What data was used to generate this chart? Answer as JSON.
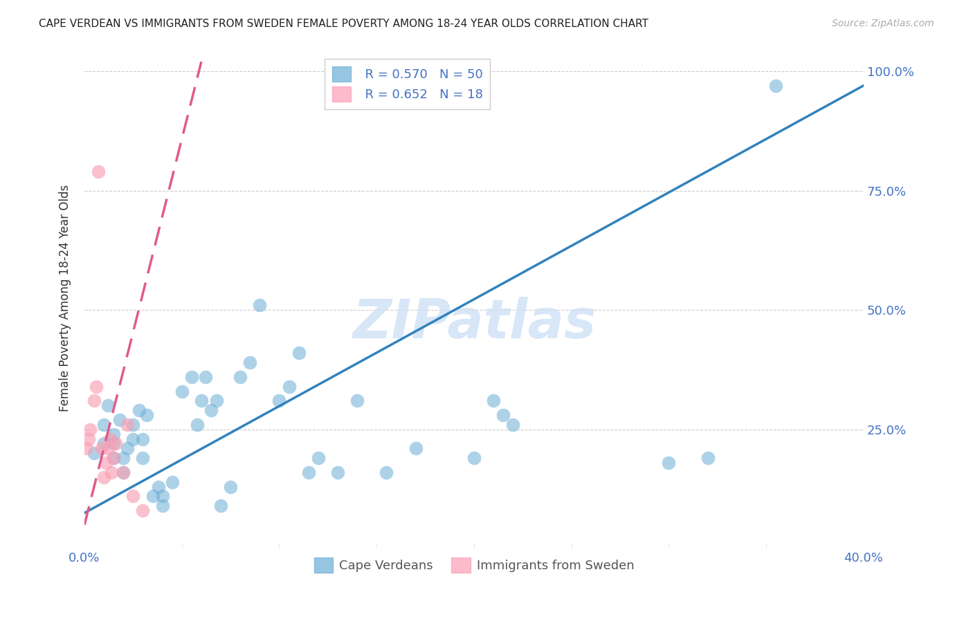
{
  "title": "CAPE VERDEAN VS IMMIGRANTS FROM SWEDEN FEMALE POVERTY AMONG 18-24 YEAR OLDS CORRELATION CHART",
  "source": "Source: ZipAtlas.com",
  "ylabel": "Female Poverty Among 18-24 Year Olds",
  "xlim": [
    0.0,
    0.4
  ],
  "ylim": [
    0.0,
    1.05
  ],
  "xticks": [
    0.0,
    0.05,
    0.1,
    0.15,
    0.2,
    0.25,
    0.3,
    0.35,
    0.4
  ],
  "xtick_labels": [
    "0.0%",
    "",
    "",
    "",
    "",
    "",
    "",
    "",
    "40.0%"
  ],
  "ytick_labels": [
    "",
    "25.0%",
    "50.0%",
    "75.0%",
    "100.0%"
  ],
  "yticks": [
    0.0,
    0.25,
    0.5,
    0.75,
    1.0
  ],
  "blue_color": "#6baed6",
  "pink_color": "#fa9fb5",
  "blue_line_color": "#3182bd",
  "pink_line_color": "#e05a8a",
  "blue_R": 0.57,
  "blue_N": 50,
  "pink_R": 0.652,
  "pink_N": 18,
  "watermark": "ZIPatlas",
  "legend_label_blue": "Cape Verdeans",
  "legend_label_pink": "Immigrants from Sweden",
  "blue_scatter_x": [
    0.005,
    0.01,
    0.01,
    0.012,
    0.015,
    0.015,
    0.015,
    0.018,
    0.02,
    0.02,
    0.022,
    0.025,
    0.025,
    0.028,
    0.03,
    0.03,
    0.032,
    0.035,
    0.038,
    0.04,
    0.04,
    0.045,
    0.05,
    0.055,
    0.058,
    0.06,
    0.062,
    0.065,
    0.068,
    0.07,
    0.075,
    0.08,
    0.085,
    0.09,
    0.1,
    0.105,
    0.11,
    0.115,
    0.12,
    0.13,
    0.14,
    0.155,
    0.17,
    0.2,
    0.21,
    0.215,
    0.22,
    0.3,
    0.32,
    0.355
  ],
  "blue_scatter_y": [
    0.2,
    0.22,
    0.26,
    0.3,
    0.19,
    0.22,
    0.24,
    0.27,
    0.16,
    0.19,
    0.21,
    0.23,
    0.26,
    0.29,
    0.19,
    0.23,
    0.28,
    0.11,
    0.13,
    0.09,
    0.11,
    0.14,
    0.33,
    0.36,
    0.26,
    0.31,
    0.36,
    0.29,
    0.31,
    0.09,
    0.13,
    0.36,
    0.39,
    0.51,
    0.31,
    0.34,
    0.41,
    0.16,
    0.19,
    0.16,
    0.31,
    0.16,
    0.21,
    0.19,
    0.31,
    0.28,
    0.26,
    0.18,
    0.19,
    0.97
  ],
  "pink_scatter_x": [
    0.001,
    0.002,
    0.003,
    0.005,
    0.006,
    0.007,
    0.009,
    0.01,
    0.011,
    0.012,
    0.013,
    0.014,
    0.015,
    0.016,
    0.02,
    0.022,
    0.025,
    0.03
  ],
  "pink_scatter_y": [
    0.21,
    0.23,
    0.25,
    0.31,
    0.34,
    0.79,
    0.21,
    0.15,
    0.18,
    0.21,
    0.23,
    0.16,
    0.19,
    0.22,
    0.16,
    0.26,
    0.11,
    0.08
  ],
  "blue_trendline_x": [
    0.0,
    0.4
  ],
  "blue_trendline_y": [
    0.075,
    0.97
  ],
  "pink_trendline_x": [
    0.0,
    0.06
  ],
  "pink_trendline_y": [
    0.05,
    1.02
  ]
}
